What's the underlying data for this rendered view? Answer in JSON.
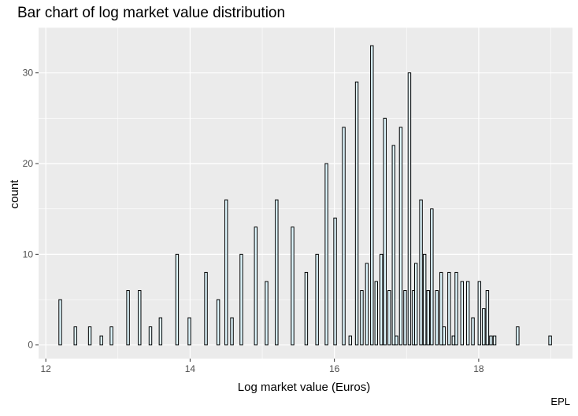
{
  "chart_data": {
    "type": "bar",
    "title": "Bar chart of log market value distribution",
    "xlabel": "Log market value (Euros)",
    "ylabel": "count",
    "caption": "EPL",
    "xlim": [
      11.9,
      19.3
    ],
    "ylim": [
      -1.5,
      35
    ],
    "x_ticks": [
      12,
      14,
      16,
      18
    ],
    "y_ticks": [
      0,
      10,
      20,
      30
    ],
    "grid": true,
    "bar_fill": "#e0f8ff",
    "bar_stroke": "#000000",
    "panel_bg": "#ebebeb",
    "grid_color": "#ffffff",
    "points": [
      [
        12.2,
        5
      ],
      [
        12.41,
        2
      ],
      [
        12.61,
        2
      ],
      [
        12.77,
        1
      ],
      [
        12.91,
        2
      ],
      [
        13.14,
        6
      ],
      [
        13.3,
        6
      ],
      [
        13.45,
        2
      ],
      [
        13.59,
        3
      ],
      [
        13.82,
        10
      ],
      [
        13.99,
        3
      ],
      [
        14.22,
        8
      ],
      [
        14.39,
        5
      ],
      [
        14.5,
        16
      ],
      [
        14.58,
        3
      ],
      [
        14.71,
        10
      ],
      [
        14.91,
        13
      ],
      [
        15.06,
        7
      ],
      [
        15.2,
        16
      ],
      [
        15.42,
        13
      ],
      [
        15.61,
        8
      ],
      [
        15.76,
        10
      ],
      [
        15.89,
        20
      ],
      [
        16.01,
        14
      ],
      [
        16.13,
        24
      ],
      [
        16.22,
        1
      ],
      [
        16.31,
        29
      ],
      [
        16.38,
        6
      ],
      [
        16.45,
        9
      ],
      [
        16.52,
        33
      ],
      [
        16.58,
        7
      ],
      [
        16.65,
        10
      ],
      [
        16.7,
        25
      ],
      [
        16.76,
        6
      ],
      [
        16.82,
        22
      ],
      [
        16.86,
        1
      ],
      [
        16.92,
        24
      ],
      [
        16.98,
        6
      ],
      [
        17.04,
        30
      ],
      [
        17.1,
        6
      ],
      [
        17.13,
        9
      ],
      [
        17.2,
        16
      ],
      [
        17.25,
        10
      ],
      [
        17.3,
        6
      ],
      [
        17.35,
        15
      ],
      [
        17.42,
        6
      ],
      [
        17.48,
        8
      ],
      [
        17.52,
        2
      ],
      [
        17.59,
        8
      ],
      [
        17.65,
        1
      ],
      [
        17.69,
        8
      ],
      [
        17.77,
        7
      ],
      [
        17.85,
        7
      ],
      [
        17.92,
        3
      ],
      [
        18.01,
        7
      ],
      [
        18.07,
        4
      ],
      [
        18.12,
        6
      ],
      [
        18.17,
        1
      ],
      [
        18.22,
        1
      ],
      [
        18.54,
        2
      ],
      [
        18.99,
        1
      ]
    ]
  }
}
